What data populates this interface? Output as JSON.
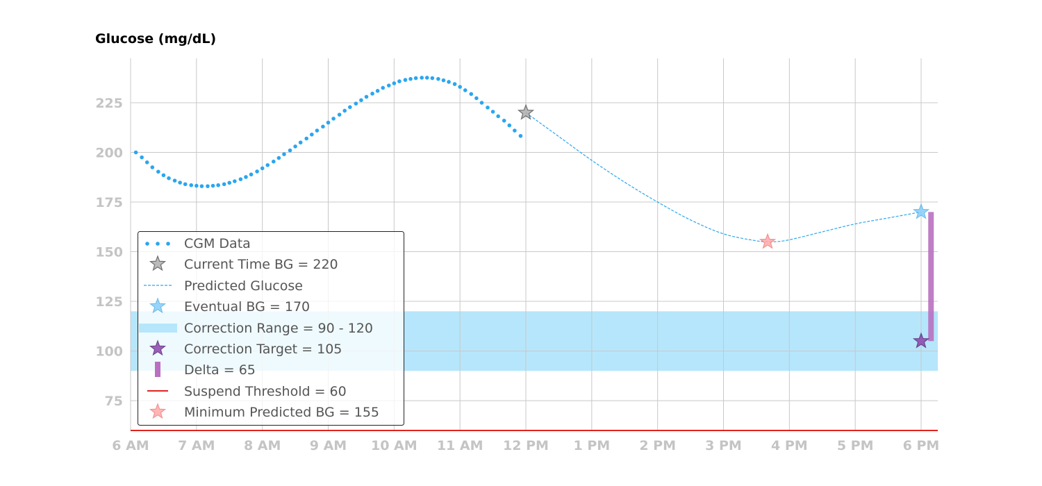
{
  "chart_data": {
    "type": "line",
    "title": "Glucose (mg/dL)",
    "xlabel": "",
    "ylabel": "",
    "x_tick_labels": [
      "6 AM",
      "7 AM",
      "8 AM",
      "9 AM",
      "10 AM",
      "11 AM",
      "12 PM",
      "1 PM",
      "2 PM",
      "3 PM",
      "4 PM",
      "5 PM",
      "6 PM"
    ],
    "y_ticks": [
      75,
      100,
      125,
      150,
      175,
      200,
      225
    ],
    "ylim": [
      60,
      242
    ],
    "xlim_hours": [
      6,
      18.25
    ],
    "grid": true,
    "legend_position": "lower-left",
    "cgm_data": {
      "name": "CGM Data",
      "color": "#2aa6f0",
      "x_hours": [
        6.08,
        6.17,
        6.25,
        6.33,
        6.42,
        6.5,
        6.58,
        6.67,
        6.75,
        6.83,
        6.92,
        7.0,
        7.08,
        7.17,
        7.25,
        7.33,
        7.42,
        7.5,
        7.58,
        7.67,
        7.75,
        7.83,
        7.92,
        8.0,
        8.08,
        8.17,
        8.25,
        8.33,
        8.42,
        8.5,
        8.58,
        8.67,
        8.75,
        8.83,
        8.92,
        9.0,
        9.08,
        9.17,
        9.25,
        9.33,
        9.42,
        9.5,
        9.58,
        9.67,
        9.75,
        9.83,
        9.92,
        10.0,
        10.08,
        10.17,
        10.25,
        10.33,
        10.42,
        10.5,
        10.58,
        10.67,
        10.75,
        10.83,
        10.92,
        11.0,
        11.08,
        11.17,
        11.25,
        11.33,
        11.42,
        11.5,
        11.58,
        11.67,
        11.75,
        11.83,
        11.92
      ],
      "values": [
        200,
        197.5,
        195,
        192.5,
        190.3,
        188.5,
        187,
        185.8,
        184.8,
        184,
        183.5,
        183.2,
        183,
        183,
        183.2,
        183.5,
        184,
        184.7,
        185.5,
        186.5,
        187.6,
        188.9,
        190.4,
        192,
        193.6,
        195.4,
        197.2,
        199.1,
        201,
        203,
        205,
        207,
        209,
        211,
        213,
        215,
        217,
        219,
        221,
        222.8,
        224.6,
        226.3,
        228,
        229.6,
        231,
        232.5,
        233.7,
        234.8,
        235.8,
        236.5,
        237,
        237.4,
        237.6,
        237.6,
        237.4,
        237,
        236.3,
        235.5,
        234.4,
        233,
        231.3,
        229.4,
        227.3,
        225,
        222.6,
        220.5,
        218.2,
        216,
        213.6,
        211,
        208.3
      ]
    },
    "current": {
      "name": "Current Time BG = ",
      "value_text": "220",
      "x_hours": 12.0,
      "value": 220,
      "color": "#9e9e9e"
    },
    "predicted": {
      "name": "Predicted Glucose",
      "color": "#2aa6f0",
      "x_hours": [
        12.0,
        12.5,
        13.0,
        13.5,
        14.0,
        14.5,
        15.0,
        15.5,
        15.75,
        16.0,
        16.5,
        17.0,
        17.5,
        18.0
      ],
      "values": [
        220,
        208,
        196,
        185,
        175,
        166,
        159,
        155.5,
        155,
        156,
        160,
        164,
        167,
        170
      ]
    },
    "eventual": {
      "name": "Eventual BG = 170",
      "x_hours": 18.0,
      "value": 170,
      "color": "#87cefa"
    },
    "correction_range": {
      "name": "Correction Range = 90 - 120",
      "low": 90,
      "high": 120,
      "color": "#b6e6fb"
    },
    "correction_target": {
      "name": "Correction Target = 105",
      "x_hours": 18.0,
      "value": 105,
      "color": "#8e44ad"
    },
    "delta": {
      "name": "Delta = 65",
      "x_hours": 18.15,
      "low": 105,
      "high": 170,
      "color": "#b970c0"
    },
    "suspend": {
      "name": "Suspend Threshold = 60",
      "value": 60,
      "color": "#e0231f"
    },
    "min_predicted": {
      "name": "Minimum Predicted BG = 155",
      "x_hours": 15.67,
      "value": 155,
      "color": "#ffaaaa"
    }
  }
}
